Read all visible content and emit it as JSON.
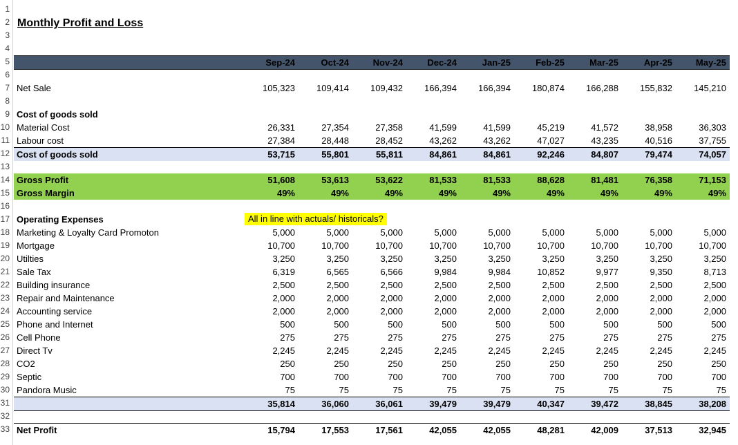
{
  "title": "Monthly Profit and Loss",
  "months": [
    "Sep-24",
    "Oct-24",
    "Nov-24",
    "Dec-24",
    "Jan-25",
    "Feb-25",
    "Mar-25",
    "Apr-25",
    "May-25"
  ],
  "note": "All in line with actuals/ historicals?",
  "rownums": [
    "1",
    "2",
    "3",
    "4",
    "5",
    "6",
    "7",
    "8",
    "9",
    "10",
    "11",
    "12",
    "13",
    "14",
    "15",
    "16",
    "17",
    "18",
    "19",
    "20",
    "21",
    "22",
    "23",
    "24",
    "25",
    "26",
    "27",
    "28",
    "29",
    "30",
    "31",
    "32",
    "33"
  ],
  "net_sale": {
    "label": "Net Sale",
    "values": [
      "105,323",
      "109,414",
      "109,432",
      "166,394",
      "166,394",
      "180,874",
      "166,288",
      "155,832",
      "145,210"
    ]
  },
  "cogs_header": "Cost of goods sold",
  "material_cost": {
    "label": "Material Cost",
    "values": [
      "26,331",
      "27,354",
      "27,358",
      "41,599",
      "41,599",
      "45,219",
      "41,572",
      "38,958",
      "36,303"
    ]
  },
  "labour_cost": {
    "label": "Labour cost",
    "values": [
      "27,384",
      "28,448",
      "28,452",
      "43,262",
      "43,262",
      "47,027",
      "43,235",
      "40,516",
      "37,755"
    ]
  },
  "cogs_total": {
    "label": "Cost of goods sold",
    "values": [
      "53,715",
      "55,801",
      "55,811",
      "84,861",
      "84,861",
      "92,246",
      "84,807",
      "79,474",
      "74,057"
    ]
  },
  "gross_profit": {
    "label": "Gross Profit",
    "values": [
      "51,608",
      "53,613",
      "53,622",
      "81,533",
      "81,533",
      "88,628",
      "81,481",
      "76,358",
      "71,153"
    ]
  },
  "gross_margin": {
    "label": "Gross Margin",
    "values": [
      "49%",
      "49%",
      "49%",
      "49%",
      "49%",
      "49%",
      "49%",
      "49%",
      "49%"
    ]
  },
  "opex_header": "Operating Expenses",
  "opex": [
    {
      "label": "Marketing & Loyalty Card Promoton",
      "values": [
        "5,000",
        "5,000",
        "5,000",
        "5,000",
        "5,000",
        "5,000",
        "5,000",
        "5,000",
        "5,000"
      ]
    },
    {
      "label": "Mortgage",
      "values": [
        "10,700",
        "10,700",
        "10,700",
        "10,700",
        "10,700",
        "10,700",
        "10,700",
        "10,700",
        "10,700"
      ]
    },
    {
      "label": "Utilties",
      "values": [
        "3,250",
        "3,250",
        "3,250",
        "3,250",
        "3,250",
        "3,250",
        "3,250",
        "3,250",
        "3,250"
      ]
    },
    {
      "label": "Sale Tax",
      "values": [
        "6,319",
        "6,565",
        "6,566",
        "9,984",
        "9,984",
        "10,852",
        "9,977",
        "9,350",
        "8,713"
      ]
    },
    {
      "label": "Building insurance",
      "values": [
        "2,500",
        "2,500",
        "2,500",
        "2,500",
        "2,500",
        "2,500",
        "2,500",
        "2,500",
        "2,500"
      ]
    },
    {
      "label": "Repair and Maintenance",
      "values": [
        "2,000",
        "2,000",
        "2,000",
        "2,000",
        "2,000",
        "2,000",
        "2,000",
        "2,000",
        "2,000"
      ]
    },
    {
      "label": "Accounting service",
      "values": [
        "2,000",
        "2,000",
        "2,000",
        "2,000",
        "2,000",
        "2,000",
        "2,000",
        "2,000",
        "2,000"
      ]
    },
    {
      "label": "Phone and Internet",
      "values": [
        "500",
        "500",
        "500",
        "500",
        "500",
        "500",
        "500",
        "500",
        "500"
      ]
    },
    {
      "label": "Cell Phone",
      "values": [
        "275",
        "275",
        "275",
        "275",
        "275",
        "275",
        "275",
        "275",
        "275"
      ]
    },
    {
      "label": "Direct Tv",
      "values": [
        "2,245",
        "2,245",
        "2,245",
        "2,245",
        "2,245",
        "2,245",
        "2,245",
        "2,245",
        "2,245"
      ]
    },
    {
      "label": "CO2",
      "values": [
        "250",
        "250",
        "250",
        "250",
        "250",
        "250",
        "250",
        "250",
        "250"
      ]
    },
    {
      "label": "Septic",
      "values": [
        "700",
        "700",
        "700",
        "700",
        "700",
        "700",
        "700",
        "700",
        "700"
      ]
    },
    {
      "label": "Pandora Music",
      "values": [
        "75",
        "75",
        "75",
        "75",
        "75",
        "75",
        "75",
        "75",
        "75"
      ]
    }
  ],
  "opex_total": {
    "values": [
      "35,814",
      "36,060",
      "36,061",
      "39,479",
      "39,479",
      "40,347",
      "39,472",
      "38,845",
      "38,208"
    ]
  },
  "net_profit": {
    "label": "Net Profit",
    "values": [
      "15,794",
      "17,553",
      "17,561",
      "42,055",
      "42,055",
      "48,281",
      "42,009",
      "37,513",
      "32,945"
    ]
  }
}
